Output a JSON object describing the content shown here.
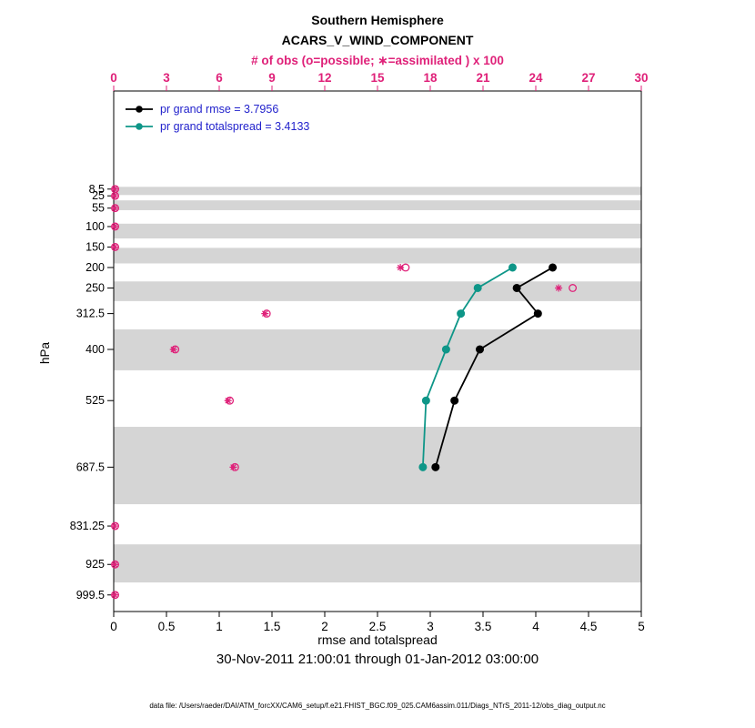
{
  "titles": {
    "line1": "Southern Hemisphere",
    "line2": "ACARS_V_WIND_COMPONENT",
    "obs_axis": "# of obs (o=possible; ∗=assimilated ) x 100"
  },
  "colors": {
    "obs": "#df2179",
    "band": "#d5d5d5",
    "legend_text": "#2222cc",
    "axis": "#000000",
    "background": "#ffffff"
  },
  "legend": [
    {
      "key": "rmse",
      "label": "pr grand rmse = 3.7956"
    },
    {
      "key": "totalspread",
      "label": "pr grand totalspread = 3.4133"
    }
  ],
  "axes": {
    "x_bottom": {
      "label": "rmse and totalspread",
      "range": [
        0,
        5
      ],
      "ticks": [
        0,
        0.5,
        1,
        1.5,
        2,
        2.5,
        3,
        3.5,
        4,
        4.5,
        5
      ]
    },
    "x_top": {
      "range": [
        0,
        30
      ],
      "ticks": [
        0,
        3,
        6,
        9,
        12,
        15,
        18,
        21,
        24,
        27,
        30
      ]
    },
    "y": {
      "label": "hPa",
      "range_hpa": [
        -231,
        1040
      ],
      "ticks": [
        8.5,
        25,
        55,
        100,
        150,
        200,
        250,
        312.5,
        400,
        525,
        687.5,
        831.25,
        925,
        999.5
      ]
    }
  },
  "footer": {
    "timespan": "30-Nov-2011 21:00:01 through 01-Jan-2012 03:00:00",
    "datafile": "data file: /Users/raeder/DAI/ATM_forcXX/CAM6_setup/f.e21.FHIST_BGC.f09_025.CAM6assim.011/Diags_NTrS_2011-12/obs_diag_output.nc"
  },
  "chart_data": {
    "type": "line",
    "title": "Southern Hemisphere ACARS_V_WIND_COMPONENT",
    "xlabel": "rmse and totalspread",
    "ylabel": "hPa",
    "x_range_bottom": [
      0,
      5
    ],
    "x_range_top_obs_x100": [
      0,
      30
    ],
    "y_range_hpa_top_to_bottom": [
      -231,
      1040
    ],
    "levels_hpa": [
      8.5,
      25,
      55,
      100,
      150,
      200,
      250,
      312.5,
      400,
      525,
      687.5,
      831.25,
      925,
      999.5
    ],
    "series": [
      {
        "key": "rmse",
        "name": "pr grand rmse",
        "grand_value": 3.7956,
        "color": "#000000",
        "points": [
          {
            "hpa": 200,
            "value": 4.16
          },
          {
            "hpa": 250,
            "value": 3.82
          },
          {
            "hpa": 312.5,
            "value": 4.02
          },
          {
            "hpa": 400,
            "value": 3.47
          },
          {
            "hpa": 525,
            "value": 3.23
          },
          {
            "hpa": 687.5,
            "value": 3.05
          }
        ]
      },
      {
        "key": "totalspread",
        "name": "pr grand totalspread",
        "grand_value": 3.4133,
        "color": "#0e9688",
        "points": [
          {
            "hpa": 200,
            "value": 3.78
          },
          {
            "hpa": 250,
            "value": 3.45
          },
          {
            "hpa": 312.5,
            "value": 3.29
          },
          {
            "hpa": 400,
            "value": 3.15
          },
          {
            "hpa": 525,
            "value": 2.96
          },
          {
            "hpa": 687.5,
            "value": 2.93
          }
        ]
      }
    ],
    "obs_counts_x100": {
      "levels_hpa": [
        8.5,
        25,
        55,
        100,
        150,
        200,
        250,
        312.5,
        400,
        525,
        687.5,
        831.25,
        925,
        999.5
      ],
      "possible": [
        0.08,
        0.08,
        0.08,
        0.08,
        0.08,
        16.6,
        26.1,
        8.7,
        3.5,
        6.6,
        6.9,
        0.08,
        0.08,
        0.08
      ],
      "assimilated": [
        0.05,
        0.05,
        0.05,
        0.05,
        0.05,
        16.3,
        25.3,
        8.6,
        3.4,
        6.5,
        6.8,
        0.05,
        0.05,
        0.05
      ]
    },
    "gray_bands_hpa": [
      [
        3,
        23
      ],
      [
        36,
        60
      ],
      [
        93,
        129
      ],
      [
        152,
        190
      ],
      [
        234,
        282
      ],
      [
        351,
        451
      ],
      [
        589,
        778
      ],
      [
        876,
        969
      ]
    ],
    "legend_position": "top-left-inside",
    "grid": false
  }
}
